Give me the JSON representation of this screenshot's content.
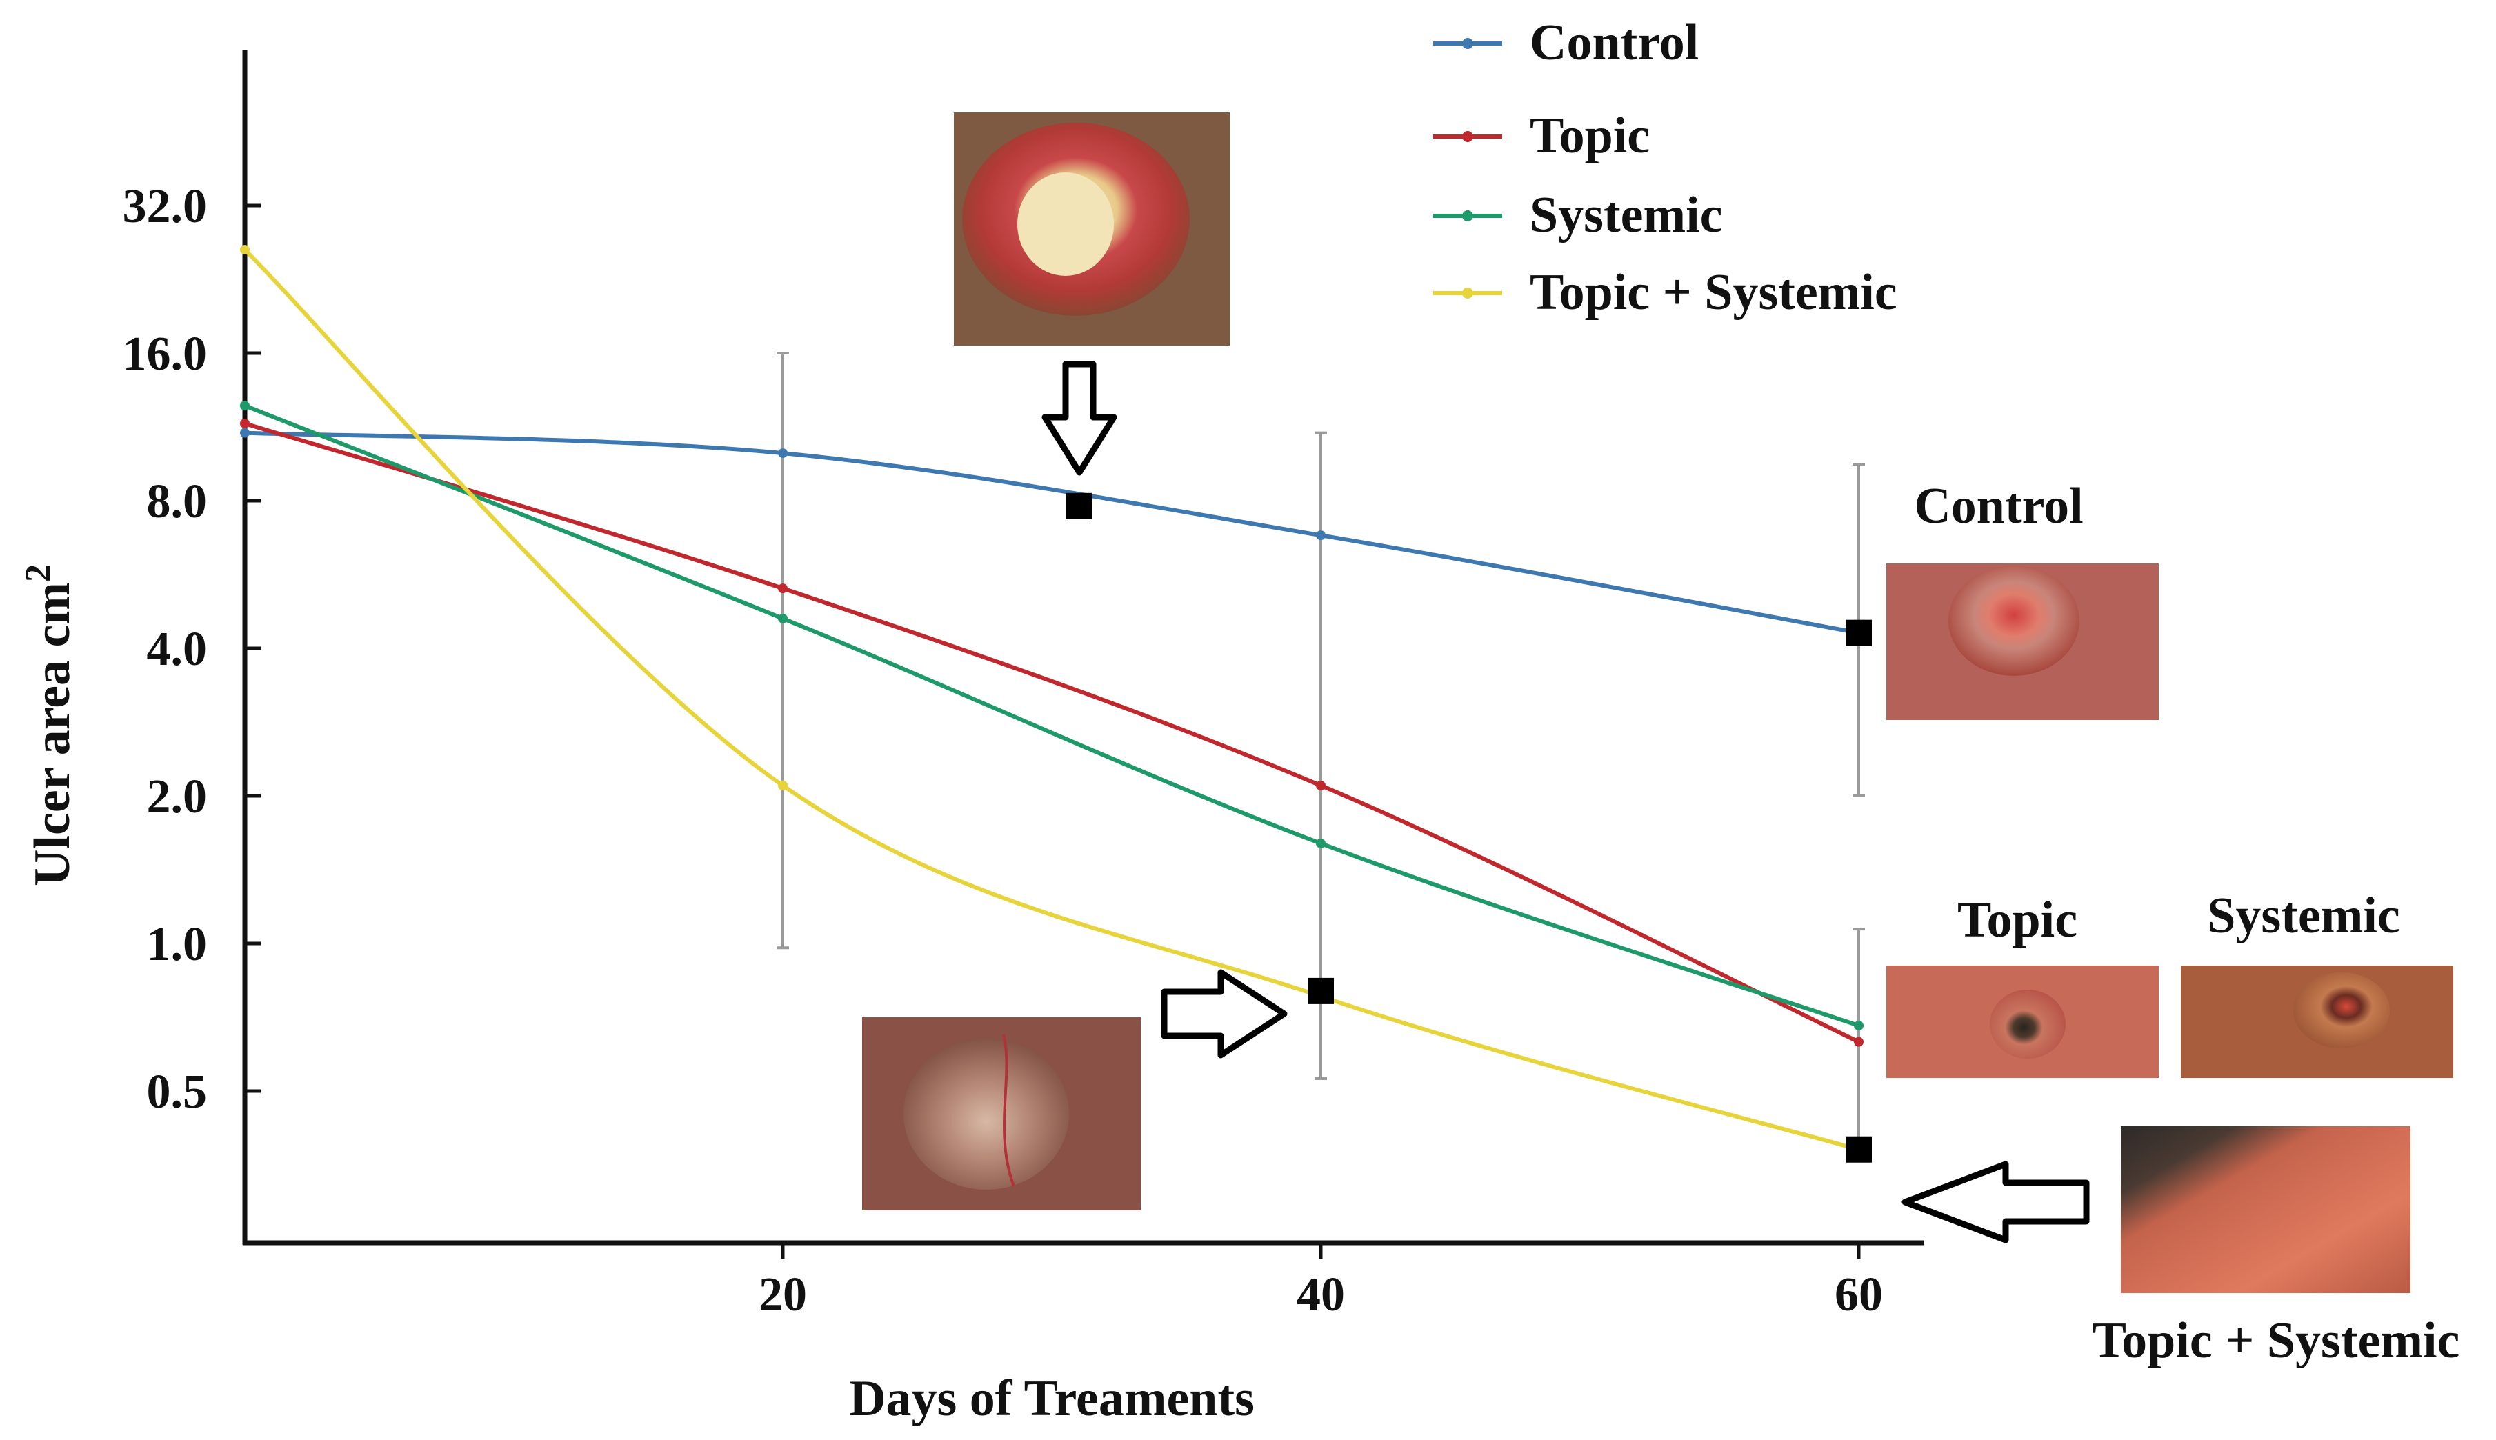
{
  "chart_data": {
    "type": "line",
    "xlabel": "Days of Treaments",
    "ylabel": "Ulcer area cm",
    "ylabel_superscript": "2",
    "y_scale": "log2",
    "xlim": [
      0,
      60
    ],
    "ylim": [
      0.35,
      50
    ],
    "x_ticks": [
      20,
      40,
      60
    ],
    "x_tick_labels": [
      "20",
      "40",
      "60"
    ],
    "y_ticks": [
      0.5,
      1,
      2,
      4,
      8,
      16,
      32
    ],
    "y_tick_labels": [
      "0.5",
      "1.0",
      "2.0",
      "4.0",
      "8.0",
      "16.0",
      "32.0"
    ],
    "grid": false,
    "legend_position": "top-right",
    "series": [
      {
        "name": "Control",
        "color": "#3d78b0",
        "x": [
          0,
          20,
          40,
          60
        ],
        "y": [
          11,
          10,
          6.8,
          4.3
        ]
      },
      {
        "name": "Topic",
        "color": "#c0282e",
        "x": [
          0,
          20,
          40,
          60
        ],
        "y": [
          11.5,
          5.3,
          2.1,
          0.63
        ]
      },
      {
        "name": "Systemic",
        "color": "#1e9a6a",
        "x": [
          0,
          20,
          40,
          60
        ],
        "y": [
          12.5,
          4.6,
          1.6,
          0.68
        ]
      },
      {
        "name": "Topic + Systemic",
        "color": "#e7d43a",
        "x": [
          0,
          20,
          40,
          60
        ],
        "y": [
          26,
          2.1,
          0.78,
          0.38
        ]
      }
    ],
    "error_bars": [
      {
        "x": 20,
        "low": 0.98,
        "high": 16
      },
      {
        "x": 40,
        "low": 0.53,
        "high": 11
      },
      {
        "x": 60,
        "low": 2.0,
        "high": 9.5
      },
      {
        "x": 60,
        "low": 0.36,
        "high": 1.07
      }
    ],
    "highlighted_points": [
      {
        "x": 31,
        "y": 7.8
      },
      {
        "x": 40,
        "y": 0.8
      },
      {
        "x": 60,
        "y": 4.3
      },
      {
        "x": 60,
        "y": 0.38
      }
    ],
    "photo_labels": [
      "Control",
      "Topic",
      "Systemic",
      "Topic + Systemic"
    ],
    "colors": {
      "axis": "#111111",
      "error_bar": "#9a9a9a",
      "marker": "#000000"
    }
  }
}
